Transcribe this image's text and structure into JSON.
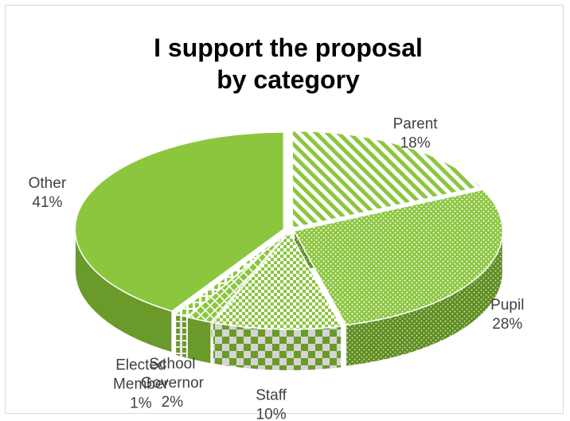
{
  "chart_data": {
    "type": "pie",
    "style": "3d-exploded-patterned",
    "title_lines": [
      "I support the proposal",
      "by category"
    ],
    "categories": [
      "Parent",
      "Pupil",
      "Staff",
      "School Governor",
      "Elected Member",
      "Other"
    ],
    "values": [
      18,
      28,
      10,
      2,
      1,
      41
    ],
    "value_unit": "%",
    "percent_labels": [
      "18%",
      "28%",
      "10%",
      "2%",
      "1%",
      "41%"
    ],
    "label_lines": [
      [
        "Parent"
      ],
      [
        "Pupil"
      ],
      [
        "Staff"
      ],
      [
        "School",
        "Governor"
      ],
      [
        "Elected",
        "Member"
      ],
      [
        "Other"
      ]
    ],
    "legend": "none",
    "colors": {
      "base": "#8cc63f",
      "light": "#a9d86a",
      "dark": "#6a9a2a",
      "darker": "#4f7a1c",
      "pattern_bg": "#ffffff",
      "pattern_fg": "#8cc63f"
    }
  }
}
